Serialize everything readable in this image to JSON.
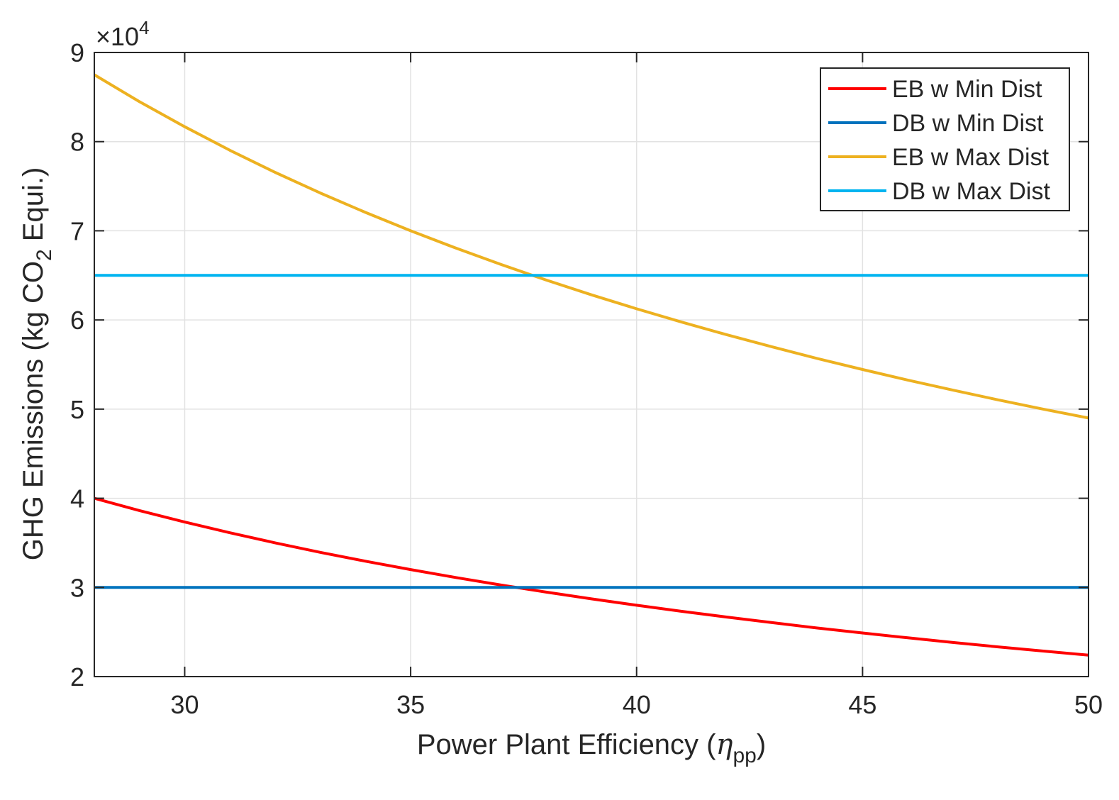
{
  "chart_data": {
    "type": "line",
    "title": "",
    "xlabel": {
      "prefix": "Power Plant Efficiency (",
      "symbol": "η",
      "subscript": "pp",
      "suffix": ")"
    },
    "ylabel": {
      "prefix": "GHG Emissions (kg CO",
      "subscript": "2",
      "suffix": " Equi.)"
    },
    "xlim": [
      28,
      50
    ],
    "ylim": [
      20000,
      90000
    ],
    "xticks": [
      30,
      35,
      40,
      45,
      50
    ],
    "xtick_labels": [
      "30",
      "35",
      "40",
      "45",
      "50"
    ],
    "yticks": [
      20000,
      30000,
      40000,
      50000,
      60000,
      70000,
      80000,
      90000
    ],
    "ytick_labels": [
      "2",
      "3",
      "4",
      "5",
      "6",
      "7",
      "8",
      "9"
    ],
    "y_exponent": {
      "base": "×10",
      "power": "4"
    },
    "grid": true,
    "legend_position": "top-right",
    "series": [
      {
        "name": "EB w Min Dist",
        "color": "#ff0000",
        "x": [
          28,
          29,
          30,
          31,
          32,
          33,
          34,
          35,
          36,
          37,
          38,
          39,
          40,
          41,
          42,
          43,
          44,
          45,
          46,
          47,
          48,
          49,
          50
        ],
        "y": [
          40000,
          38620,
          37330,
          36130,
          35000,
          33940,
          32940,
          32000,
          31110,
          30270,
          29470,
          28720,
          28000,
          27320,
          26670,
          26050,
          25450,
          24890,
          24350,
          23830,
          23330,
          22860,
          22400
        ]
      },
      {
        "name": "DB w Min Dist",
        "color": "#0072bd",
        "x": [
          28,
          50
        ],
        "y": [
          30000,
          30000
        ]
      },
      {
        "name": "EB w Max Dist",
        "color": "#edb120",
        "x": [
          28,
          29,
          30,
          31,
          32,
          33,
          34,
          35,
          36,
          37,
          38,
          39,
          40,
          41,
          42,
          43,
          44,
          45,
          46,
          47,
          48,
          49,
          50
        ],
        "y": [
          87500,
          84480,
          81670,
          79030,
          76560,
          74240,
          72060,
          70000,
          68060,
          66220,
          64470,
          62820,
          61250,
          59760,
          58330,
          56980,
          55680,
          54440,
          53260,
          52130,
          51040,
          50000,
          49000
        ]
      },
      {
        "name": "DB w Max Dist",
        "color": "#00b4f0",
        "x": [
          28,
          50
        ],
        "y": [
          65000,
          65000
        ]
      }
    ]
  }
}
